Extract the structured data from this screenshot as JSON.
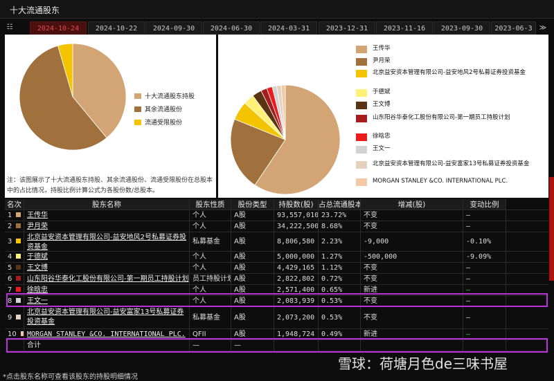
{
  "title": "十大流通股东",
  "dates": [
    "2024-10-24",
    "2024-10-22",
    "2024-09-30",
    "2024-06-30",
    "2024-03-31",
    "2023-12-31",
    "2023-11-16",
    "2023-09-30",
    "2023-06-3"
  ],
  "active_date_index": 0,
  "left_chart": {
    "legend": [
      {
        "label": "十大流通股东持股",
        "color": "#d4a574"
      },
      {
        "label": "其余流通股份",
        "color": "#a0703d"
      },
      {
        "label": "流通受限股份",
        "color": "#f5c400"
      }
    ],
    "note": "注：该图展示了十大流通股东持股、其余流通股份、流通受限股份在总股本中的占比情况，持股比例计算公式为各股份数/总股本。"
  },
  "right_chart": {
    "legend": [
      {
        "label": "王传华",
        "color": "#d4a574"
      },
      {
        "label": "尹月荣",
        "color": "#a0703d"
      },
      {
        "label": "北京益安资本管理有限公司-益安地风2号私募证券投资基金",
        "color": "#f5c400"
      },
      {
        "label": "于德斌",
        "color": "#fff176"
      },
      {
        "label": "王文博",
        "color": "#5a3312"
      },
      {
        "label": "山东阳谷华泰化工股份有限公司-第一期员工持股计划",
        "color": "#a51d1d"
      },
      {
        "label": "徐晗忠",
        "color": "#ec1c1c"
      },
      {
        "label": "王文一",
        "color": "#d3d3d3"
      },
      {
        "label": "北京益安资本管理有限公司-益安富家13号私募证券投资基金",
        "color": "#e4d2bd"
      },
      {
        "label": "MORGAN STANLEY &CO. INTERNATIONAL PLC.",
        "color": "#f4c9a8"
      }
    ]
  },
  "table": {
    "headers": [
      "名次",
      "股东名称",
      "股东性质",
      "股份类型",
      "持股数(股)",
      "占总流通股本持股比例",
      "增减(股)",
      "变动比例"
    ],
    "rows": [
      {
        "rank": "1",
        "name": "王传华",
        "nature": "个人",
        "type": "A股",
        "shares": "93,557,010",
        "ratio": "23.72%",
        "change": "不变",
        "pct": "—"
      },
      {
        "rank": "2",
        "name": "尹月荣",
        "nature": "个人",
        "type": "A股",
        "shares": "34,222,500",
        "ratio": "8.68%",
        "change": "不变",
        "pct": "—"
      },
      {
        "rank": "3",
        "name": "北京益安资本管理有限公司-益安地风2号私募证券投资基金",
        "nature": "私募基金",
        "type": "A股",
        "shares": "8,806,580",
        "ratio": "2.23%",
        "change": "-9,000",
        "pct": "-0.10%"
      },
      {
        "rank": "4",
        "name": "于德斌",
        "nature": "个人",
        "type": "A股",
        "shares": "5,000,000",
        "ratio": "1.27%",
        "change": "-500,000",
        "pct": "-9.09%"
      },
      {
        "rank": "5",
        "name": "王文博",
        "nature": "个人",
        "type": "A股",
        "shares": "4,429,165",
        "ratio": "1.12%",
        "change": "不变",
        "pct": "—"
      },
      {
        "rank": "6",
        "name": "山东阳谷华泰化工股份有限公司-第一期员工持股计划",
        "nature": "员工持股计划",
        "type": "A股",
        "shares": "2,822,802",
        "ratio": "0.72%",
        "change": "不变",
        "pct": "—"
      },
      {
        "rank": "7",
        "name": "徐晗忠",
        "nature": "个人",
        "type": "A股",
        "shares": "2,571,400",
        "ratio": "0.65%",
        "change": "新进",
        "pct": "—"
      },
      {
        "rank": "8",
        "name": "王文一",
        "nature": "个人",
        "type": "A股",
        "shares": "2,083,939",
        "ratio": "0.53%",
        "change": "不变",
        "pct": "—"
      },
      {
        "rank": "9",
        "name": "北京益安资本管理有限公司-益安富家13号私募证券投资基金",
        "nature": "私募基金",
        "type": "A股",
        "shares": "2,073,200",
        "ratio": "0.53%",
        "change": "不变",
        "pct": "—"
      },
      {
        "rank": "10",
        "name": "MORGAN STANLEY &CO. INTERNATIONAL PLC.",
        "nature": "QFII",
        "type": "A股",
        "shares": "1,948,724",
        "ratio": "0.49%",
        "change": "新进",
        "pct": "—"
      }
    ],
    "total": {
      "label": "合计",
      "nature": "—",
      "type": "—",
      "shares": "",
      "ratio": ""
    }
  },
  "footnote": "*点击股东名称可查看该股东的持股明细情况",
  "watermark": "雪球：荷塘月色de三味书屋"
}
